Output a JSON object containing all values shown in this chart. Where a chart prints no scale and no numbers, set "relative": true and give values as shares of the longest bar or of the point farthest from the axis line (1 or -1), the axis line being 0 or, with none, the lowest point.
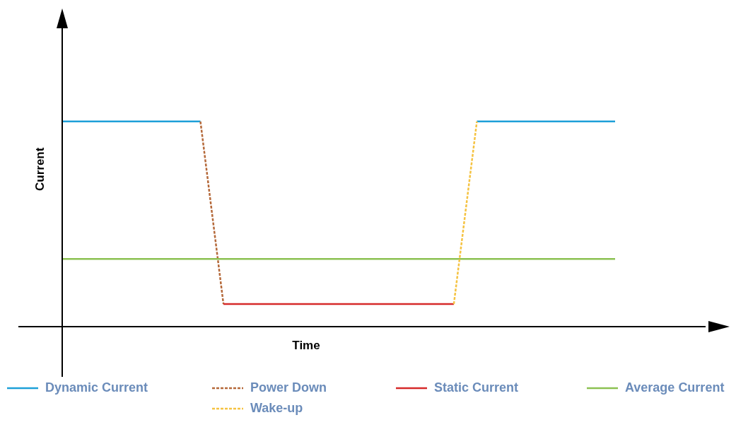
{
  "chart_data": {
    "type": "line",
    "xlabel": "Time",
    "ylabel": "Current",
    "relative": true,
    "legend": "bottom",
    "grid": false,
    "marker": "none",
    "categories": [
      null,
      null,
      null,
      null,
      null,
      null,
      null,
      null,
      null,
      null,
      null,
      null,
      null,
      null,
      null,
      null,
      null,
      null,
      null,
      null,
      null,
      null,
      null,
      null,
      null
    ],
    "series": [
      {
        "name": "Dynamic Current",
        "color": "#1ea0d8",
        "line_style": "solid",
        "values": [
          1,
          1,
          1,
          1,
          1,
          1,
          1,
          null,
          null,
          null,
          null,
          null,
          null,
          null,
          null,
          null,
          null,
          null,
          1,
          1,
          1,
          1,
          1,
          1,
          1
        ]
      },
      {
        "name": "Power Down",
        "color": "#b5693a",
        "line_style": "dashed",
        "values": [
          null,
          null,
          null,
          null,
          null,
          null,
          1,
          0.11,
          null,
          null,
          null,
          null,
          null,
          null,
          null,
          null,
          null,
          null,
          null,
          null,
          null,
          null,
          null,
          null,
          null
        ]
      },
      {
        "name": "Static Current",
        "color": "#d62a2a",
        "line_style": "solid",
        "values": [
          null,
          null,
          null,
          null,
          null,
          null,
          null,
          0.11,
          0.11,
          0.11,
          0.11,
          0.11,
          0.11,
          0.11,
          0.11,
          0.11,
          0.11,
          0.11,
          null,
          null,
          null,
          null,
          null,
          null,
          null
        ]
      },
      {
        "name": "Average Current",
        "color": "#8cc152",
        "line_style": "solid",
        "values": [
          0.33,
          0.33,
          0.33,
          0.33,
          0.33,
          0.33,
          0.33,
          0.33,
          0.33,
          0.33,
          0.33,
          0.33,
          0.33,
          0.33,
          0.33,
          0.33,
          0.33,
          0.33,
          0.33,
          0.33,
          0.33,
          0.33,
          0.33,
          0.33,
          0.33
        ]
      },
      {
        "name": "Wake-up",
        "color": "#f5c342",
        "line_style": "dashed",
        "values": [
          null,
          null,
          null,
          null,
          null,
          null,
          null,
          null,
          null,
          null,
          null,
          null,
          null,
          null,
          null,
          null,
          null,
          0.11,
          1,
          null,
          null,
          null,
          null,
          null,
          null
        ]
      }
    ]
  }
}
